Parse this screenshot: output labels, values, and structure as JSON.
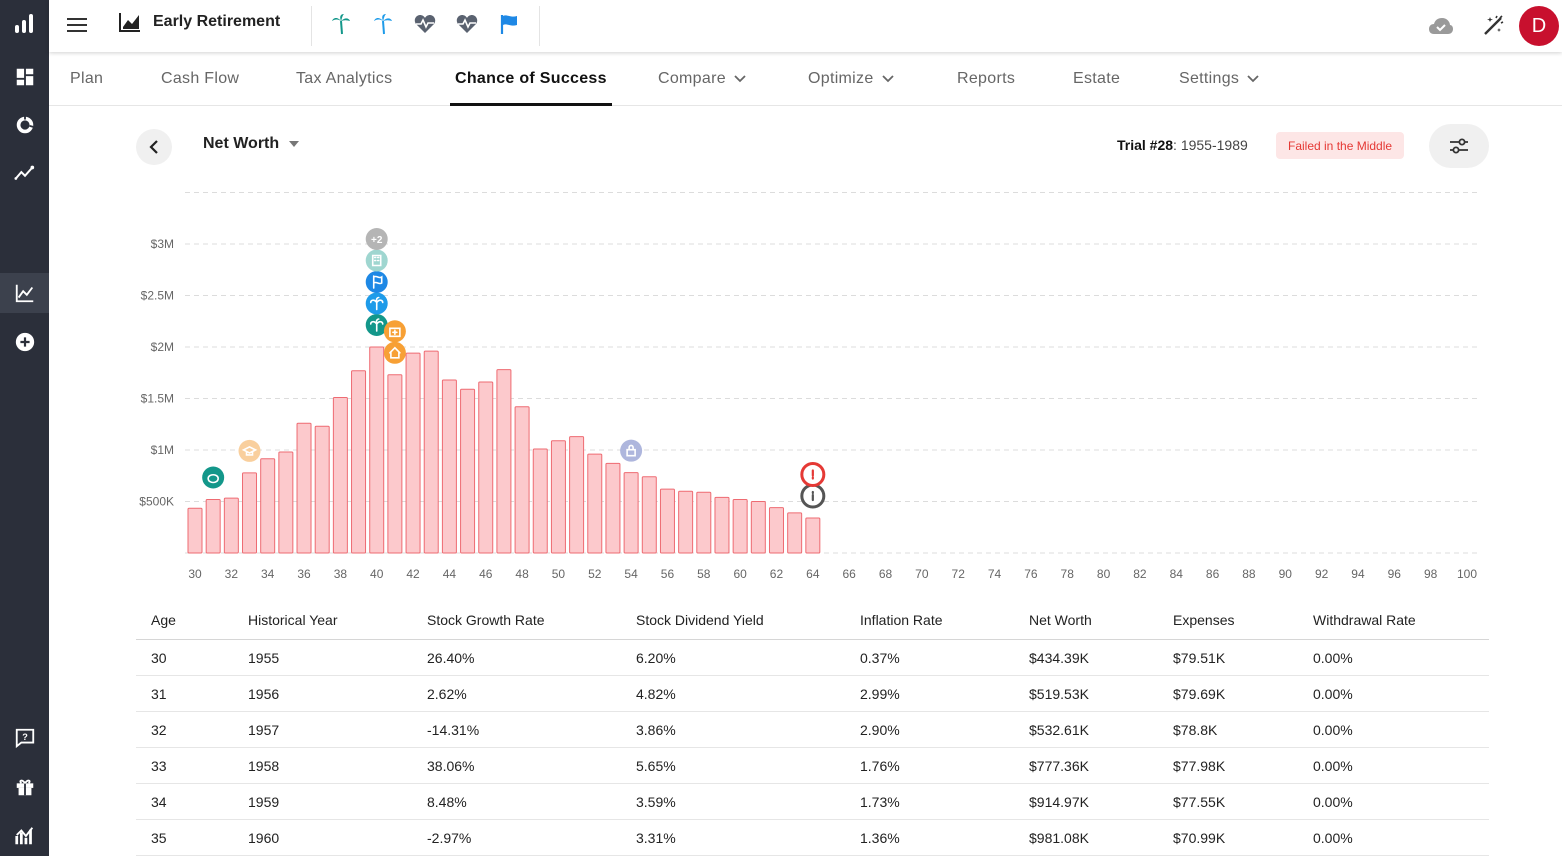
{
  "app": {
    "title": "Early Retirement",
    "avatar_initial": "D",
    "accent_color": "#c8102e"
  },
  "rail": {
    "items": [
      {
        "name": "logo-icon"
      },
      {
        "name": "dashboard-icon"
      },
      {
        "name": "donut-icon"
      },
      {
        "name": "trend-icon"
      },
      {
        "name": "chart-area-icon",
        "active": true
      },
      {
        "name": "add-circle-icon"
      },
      {
        "name": "help-icon"
      },
      {
        "name": "gift-icon"
      },
      {
        "name": "analytics-icon"
      }
    ]
  },
  "quick_icons": [
    "palm-tree-icon",
    "palm-tree-icon",
    "heart-pulse-icon",
    "heart-pulse-icon",
    "flag-icon"
  ],
  "nav": {
    "tabs": [
      {
        "label": "Plan"
      },
      {
        "label": "Cash Flow"
      },
      {
        "label": "Tax Analytics"
      },
      {
        "label": "Chance of Success",
        "active": true
      },
      {
        "label": "Compare",
        "dropdown": true
      },
      {
        "label": "Optimize",
        "dropdown": true
      },
      {
        "label": "Reports"
      },
      {
        "label": "Estate"
      },
      {
        "label": "Settings",
        "dropdown": true
      }
    ]
  },
  "toolbar": {
    "metric": "Net Worth",
    "trial_label": "Trial #28",
    "trial_years": ": 1955-1989",
    "status_badge": "Failed in the Middle",
    "status_color": "#e53935"
  },
  "chart_data": {
    "type": "bar",
    "x_label_ticks": [
      "30",
      "32",
      "34",
      "36",
      "38",
      "40",
      "42",
      "44",
      "46",
      "48",
      "50",
      "52",
      "54",
      "56",
      "58",
      "60",
      "62",
      "64",
      "66",
      "68",
      "70",
      "72",
      "74",
      "76",
      "78",
      "80",
      "82",
      "84",
      "86",
      "88",
      "90",
      "92",
      "94",
      "96",
      "98",
      "100"
    ],
    "y_ticks": [
      "$500K",
      "$1M",
      "$1.5M",
      "$2M",
      "$2.5M",
      "$3M"
    ],
    "ylim": [
      0,
      3000000
    ],
    "x_range": [
      30,
      100
    ],
    "grid": true,
    "bar_color": "#fcc9cc",
    "bar_edge_color": "#ee6b72",
    "series": [
      {
        "x": [
          30,
          31,
          32,
          33,
          34,
          35,
          36,
          37,
          38,
          39,
          40,
          41,
          42,
          43,
          44,
          45,
          46,
          47,
          48,
          49,
          50,
          51,
          52,
          53,
          54,
          55,
          56,
          57,
          58,
          59,
          60,
          61,
          62,
          63,
          64
        ],
        "values": [
          434390,
          519530,
          532610,
          777360,
          914970,
          981080,
          1260000,
          1230000,
          1510000,
          1770000,
          2000000,
          1730000,
          1940000,
          1960000,
          1680000,
          1590000,
          1660000,
          1780000,
          1420000,
          1010000,
          1090000,
          1130000,
          960000,
          870000,
          780000,
          740000,
          620000,
          600000,
          590000,
          540000,
          520000,
          500000,
          440000,
          390000,
          340000
        ]
      }
    ],
    "event_markers": [
      {
        "age": 31,
        "icon": "piggy-bank-icon",
        "color": "#13978a"
      },
      {
        "age": 33,
        "icon": "graduation-cap-icon",
        "color": "#f9cf9d"
      },
      {
        "age": 40,
        "icon": "palm-tree-icon",
        "color": "#13978a"
      },
      {
        "age": 40,
        "icon": "palm-tree-icon",
        "color": "#1e9be9"
      },
      {
        "age": 40,
        "icon": "flag-icon",
        "color": "#1e88e5"
      },
      {
        "age": 40,
        "icon": "building-icon",
        "color": "#9fd6d0"
      },
      {
        "age": 40,
        "icon": "more-events-icon",
        "color": "#b5b5b5",
        "label": "+2"
      },
      {
        "age": 41,
        "icon": "house-icon",
        "color": "#f7a035"
      },
      {
        "age": 41,
        "icon": "medical-icon",
        "color": "#f7a035"
      },
      {
        "age": 54,
        "icon": "lock-icon",
        "color": "#aeb6dd"
      },
      {
        "age": 64,
        "icon": "info-icon",
        "color": "#555555"
      },
      {
        "age": 64,
        "icon": "alert-icon",
        "color": "#e53935"
      }
    ]
  },
  "table": {
    "columns": [
      "Age",
      "Historical Year",
      "Stock Growth Rate",
      "Stock Dividend Yield",
      "Inflation Rate",
      "Net Worth",
      "Expenses",
      "Withdrawal Rate"
    ],
    "rows": [
      [
        "30",
        "1955",
        "26.40%",
        "6.20%",
        "0.37%",
        "$434.39K",
        "$79.51K",
        "0.00%"
      ],
      [
        "31",
        "1956",
        "2.62%",
        "4.82%",
        "2.99%",
        "$519.53K",
        "$79.69K",
        "0.00%"
      ],
      [
        "32",
        "1957",
        "-14.31%",
        "3.86%",
        "2.90%",
        "$532.61K",
        "$78.8K",
        "0.00%"
      ],
      [
        "33",
        "1958",
        "38.06%",
        "5.65%",
        "1.76%",
        "$777.36K",
        "$77.98K",
        "0.00%"
      ],
      [
        "34",
        "1959",
        "8.48%",
        "3.59%",
        "1.73%",
        "$914.97K",
        "$77.55K",
        "0.00%"
      ],
      [
        "35",
        "1960",
        "-2.97%",
        "3.31%",
        "1.36%",
        "$981.08K",
        "$70.99K",
        "0.00%"
      ]
    ]
  }
}
